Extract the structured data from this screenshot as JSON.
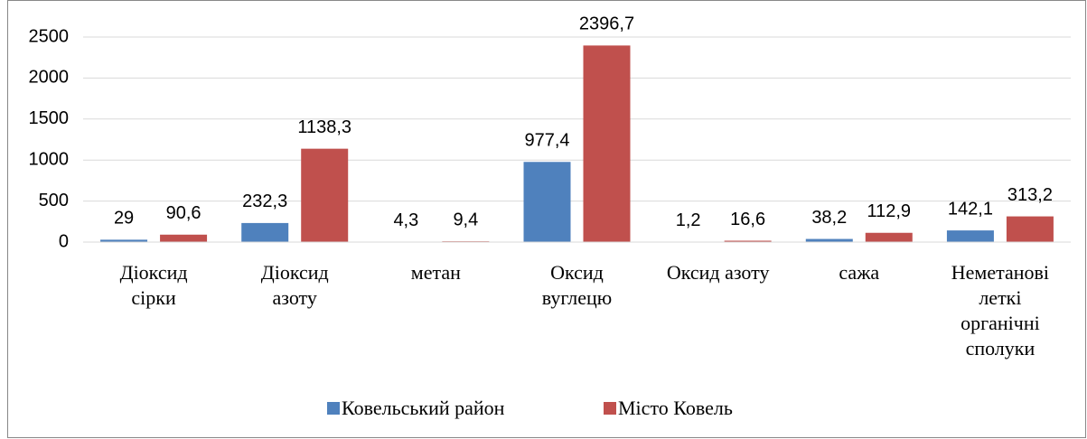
{
  "chart_data": {
    "type": "bar",
    "categories": [
      "Діоксид\nсірки",
      "Діоксид\nазоту",
      "метан",
      "Оксид\nвуглецю",
      "Оксид азоту",
      "сажа",
      "Неметанові\nлеткі\nорганічні\nсполуки"
    ],
    "series": [
      {
        "name": "Ковельський район",
        "color": "#4f81bd",
        "values": [
          29,
          232.3,
          4.3,
          977.4,
          1.2,
          38.2,
          142.1
        ],
        "value_labels": [
          "29",
          "232,3",
          "4,3",
          "977,4",
          "1,2",
          "38,2",
          "142,1"
        ]
      },
      {
        "name": "Місто Ковель",
        "color": "#c0504d",
        "values": [
          90.6,
          1138.3,
          9.4,
          2396.7,
          16.6,
          112.9,
          313.2
        ],
        "value_labels": [
          "90,6",
          "1138,3",
          "9,4",
          "2396,7",
          "16,6",
          "112,9",
          "313,2"
        ]
      }
    ],
    "ylim": [
      0,
      2500
    ],
    "yticks": [
      0,
      500,
      1000,
      1500,
      2000,
      2500
    ],
    "grid": true,
    "legend": "bottom"
  }
}
